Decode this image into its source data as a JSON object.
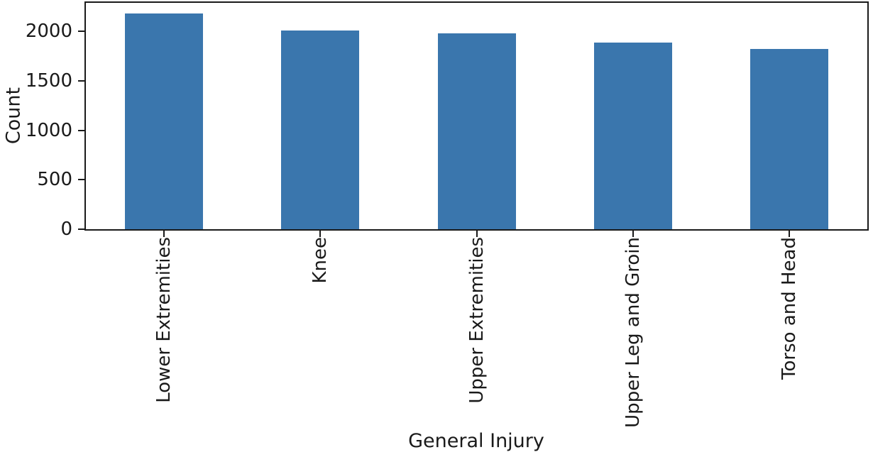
{
  "chart_data": {
    "type": "bar",
    "title": "",
    "xlabel": "General Injury",
    "ylabel": "Count",
    "categories": [
      "Lower Extremities",
      "Knee",
      "Upper Extremities",
      "Upper Leg and Groin",
      "Torso and Head"
    ],
    "values": [
      2180,
      2010,
      1985,
      1885,
      1825
    ],
    "yticks": [
      0,
      500,
      1000,
      1500,
      2000
    ],
    "ylim": [
      0,
      2290
    ],
    "grid": false,
    "legend": false,
    "bar_color": "#3a76ad",
    "axis_color": "#1a1a1a",
    "text_color": "#1a1a1a"
  }
}
